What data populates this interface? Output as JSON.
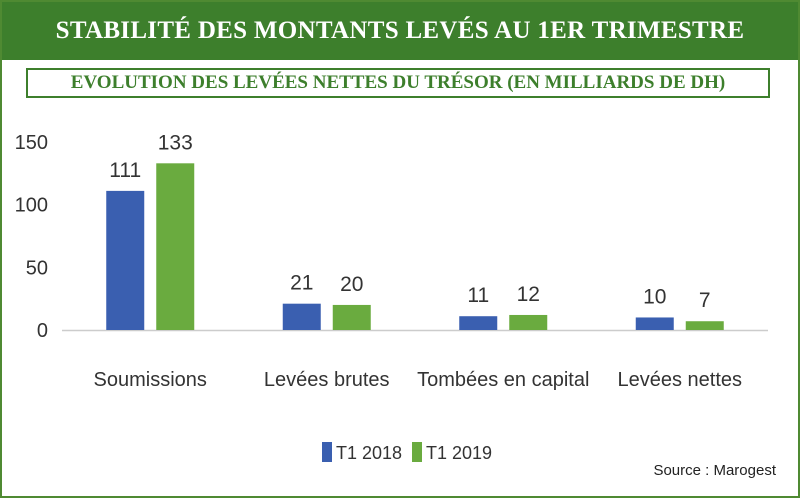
{
  "title": "STABILITÉ DES MONTANTS LEVÉS AU 1ER TRIMESTRE",
  "subtitle": "EVOLUTION DES LEVÉES NETTES DU TRÉSOR (EN MILLIARDS DE DH)",
  "source": "Source : Marogest",
  "colors": {
    "header_bg": "#3d7f2c",
    "series_2018": "#3a5fb0",
    "series_2019": "#6aab3f"
  },
  "chart_data": {
    "type": "bar",
    "title": "EVOLUTION DES LEVÉES NETTES DU TRÉSOR (EN MILLIARDS DE DH)",
    "categories": [
      "Soumissions",
      "Levées brutes",
      "Tombées en capital",
      "Levées nettes"
    ],
    "series": [
      {
        "name": "T1 2018",
        "values": [
          111,
          21,
          11,
          10
        ],
        "color": "#3a5fb0"
      },
      {
        "name": "T1 2019",
        "values": [
          133,
          20,
          12,
          7
        ],
        "color": "#6aab3f"
      }
    ],
    "yticks": [
      0,
      50,
      100,
      150
    ],
    "ylim": [
      0,
      150
    ],
    "grid": false,
    "legend_position": "bottom"
  }
}
